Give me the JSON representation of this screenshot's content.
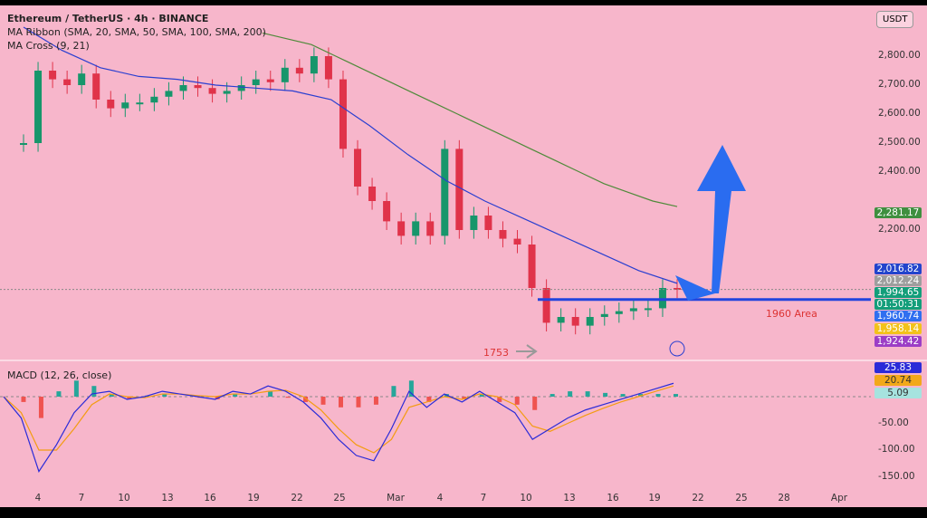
{
  "header": {
    "title": "Ethereum / TetherUS · 4h · BINANCE",
    "indicator1": "MA Ribbon (SMA, 20, SMA, 50, SMA, 100, SMA, 200)",
    "indicator2": "MA Cross (9, 21)",
    "currency": "USDT"
  },
  "macd_label": "MACD (12, 26, close)",
  "annotations": {
    "area": "1960 Area",
    "low": "1753"
  },
  "chart_data": {
    "type": "candlestick",
    "price_ticks": [
      "2,800.00",
      "2,700.00",
      "2,600.00",
      "2,500.00",
      "2,400.00",
      "2,200.00"
    ],
    "date_ticks": [
      "4",
      "7",
      "10",
      "13",
      "16",
      "19",
      "22",
      "25",
      "Mar",
      "4",
      "7",
      "10",
      "13",
      "16",
      "19",
      "22",
      "25",
      "28",
      "Apr"
    ],
    "closes": [
      2500,
      2750,
      2720,
      2700,
      2740,
      2650,
      2620,
      2640,
      2640,
      2660,
      2680,
      2700,
      2690,
      2670,
      2680,
      2700,
      2720,
      2710,
      2760,
      2740,
      2800,
      2720,
      2480,
      2350,
      2300,
      2230,
      2180,
      2230,
      2180,
      2480,
      2200,
      2250,
      2200,
      2170,
      2150,
      2000,
      1880,
      1900,
      1870,
      1900,
      1910,
      1920,
      1930,
      1930,
      2000,
      1995
    ],
    "sma200": [
      2880,
      2860,
      2840,
      2800,
      2760,
      2720,
      2680,
      2640,
      2600,
      2560,
      2520,
      2480,
      2440,
      2400,
      2360,
      2330,
      2300,
      2281
    ],
    "sma100": [
      2900,
      2820,
      2760,
      2730,
      2720,
      2700,
      2690,
      2680,
      2650,
      2560,
      2460,
      2370,
      2300,
      2240,
      2180,
      2120,
      2060,
      2016
    ],
    "hline": 1960,
    "price_labels": [
      {
        "v": "2,281.17",
        "c": "#3f8f3f"
      },
      {
        "v": "2,016.82",
        "c": "#2244cc"
      },
      {
        "v": "2,012.24",
        "c": "#9e9e9e"
      },
      {
        "v": "1,994.65",
        "c": "#139e7a"
      },
      {
        "v": "01:50:31",
        "c": "#139e7a"
      },
      {
        "v": "1,960.74",
        "c": "#2f6ff0"
      },
      {
        "v": "1,958.14",
        "c": "#f2c21a"
      },
      {
        "v": "1,924.42",
        "c": "#9c3ec6"
      }
    ],
    "macd_ticks": [
      "-50.00",
      "-100.00",
      "-150.00"
    ],
    "macd_labels": [
      {
        "v": "25.83",
        "c": "#2b2bd8"
      },
      {
        "v": "20.74",
        "c": "#f2a81a"
      },
      {
        "v": "5.09",
        "c": "#a6e3df"
      }
    ],
    "macd": [
      0,
      -40,
      -140,
      -90,
      -30,
      5,
      10,
      -5,
      0,
      10,
      5,
      0,
      -5,
      10,
      5,
      20,
      10,
      -10,
      -40,
      -80,
      -110,
      -120,
      -60,
      10,
      -20,
      5,
      -10,
      10,
      -10,
      -30,
      -80,
      -60,
      -40,
      -25,
      -15,
      -5,
      5,
      15,
      25
    ],
    "signal": [
      0,
      -30,
      -100,
      -100,
      -60,
      -15,
      5,
      0,
      -2,
      5,
      5,
      2,
      0,
      5,
      5,
      10,
      12,
      0,
      -25,
      -60,
      -90,
      -105,
      -80,
      -20,
      -10,
      0,
      -5,
      5,
      0,
      -15,
      -55,
      -65,
      -50,
      -35,
      -22,
      -10,
      0,
      10,
      20
    ]
  }
}
